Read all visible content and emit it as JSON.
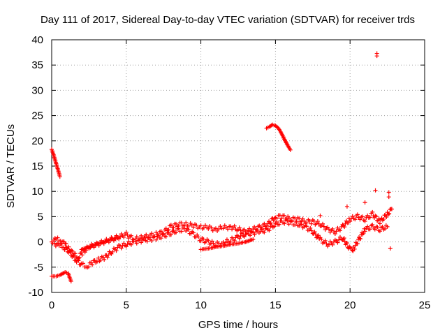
{
  "chart_data": {
    "type": "scatter",
    "title": "Day 111 of 2017, Sidereal Day-to-day VTEC variation (SDTVAR) for receiver trds",
    "xlabel": "GPS time / hours",
    "ylabel": "SDTVAR / TECUs",
    "xlim": [
      0,
      25
    ],
    "ylim": [
      -10,
      40
    ],
    "xticks": [
      0,
      5,
      10,
      15,
      20,
      25
    ],
    "yticks": [
      -10,
      -5,
      0,
      5,
      10,
      15,
      20,
      25,
      30,
      35,
      40
    ],
    "grid": true,
    "marker": "+",
    "color": "#ff0000",
    "series": [
      {
        "name": "early-high-arc",
        "points": [
          [
            0.0,
            18.3
          ],
          [
            0.1,
            17.5
          ],
          [
            0.2,
            16.5
          ],
          [
            0.3,
            15.5
          ],
          [
            0.4,
            14.5
          ],
          [
            0.5,
            13.5
          ],
          [
            0.55,
            12.9
          ]
        ]
      },
      {
        "name": "noon-high-arc",
        "points": [
          [
            14.4,
            22.5
          ],
          [
            14.6,
            22.8
          ],
          [
            14.8,
            23.2
          ],
          [
            15.0,
            23.0
          ],
          [
            15.2,
            22.5
          ],
          [
            15.4,
            21.5
          ],
          [
            15.6,
            20.3
          ],
          [
            15.8,
            19.2
          ],
          [
            16.0,
            18.2
          ]
        ]
      },
      {
        "name": "low-start-arc",
        "points": [
          [
            0.0,
            -6.8
          ],
          [
            0.3,
            -6.8
          ],
          [
            0.6,
            -6.5
          ],
          [
            0.9,
            -6.0
          ],
          [
            1.1,
            -6.2
          ],
          [
            1.2,
            -7.0
          ],
          [
            1.3,
            -7.8
          ]
        ]
      },
      {
        "name": "main-band-upper",
        "points": [
          [
            0.0,
            0.0
          ],
          [
            0.3,
            0.5
          ],
          [
            0.6,
            0.3
          ],
          [
            0.9,
            -0.5
          ],
          [
            1.2,
            -1.5
          ],
          [
            1.5,
            -2.5
          ],
          [
            1.8,
            -3.0
          ],
          [
            2.1,
            -2.0
          ],
          [
            2.5,
            -1.0
          ],
          [
            3.0,
            -0.5
          ],
          [
            3.5,
            0.0
          ],
          [
            4.0,
            0.5
          ],
          [
            4.5,
            1.0
          ],
          [
            5.0,
            1.5
          ],
          [
            5.5,
            0.5
          ],
          [
            6.0,
            0.8
          ],
          [
            6.5,
            1.2
          ],
          [
            7.0,
            1.5
          ],
          [
            7.5,
            2.0
          ],
          [
            8.0,
            3.0
          ],
          [
            8.5,
            3.5
          ],
          [
            9.0,
            3.5
          ],
          [
            9.5,
            3.2
          ],
          [
            10.0,
            3.0
          ],
          [
            10.5,
            2.8
          ],
          [
            11.0,
            2.5
          ],
          [
            11.5,
            2.8
          ],
          [
            12.0,
            3.0
          ],
          [
            12.5,
            2.5
          ],
          [
            13.0,
            2.0
          ],
          [
            13.5,
            2.5
          ],
          [
            14.0,
            3.0
          ],
          [
            14.5,
            3.5
          ],
          [
            15.0,
            5.0
          ],
          [
            15.5,
            5.0
          ],
          [
            16.0,
            4.5
          ],
          [
            16.5,
            4.5
          ],
          [
            17.0,
            4.0
          ],
          [
            17.5,
            4.0
          ],
          [
            18.0,
            3.5
          ],
          [
            18.5,
            2.5
          ],
          [
            19.0,
            2.0
          ],
          [
            19.5,
            3.0
          ],
          [
            20.0,
            4.5
          ],
          [
            20.5,
            5.0
          ],
          [
            21.0,
            4.5
          ],
          [
            21.5,
            5.5
          ],
          [
            22.0,
            4.0
          ],
          [
            22.5,
            5.5
          ],
          [
            22.8,
            6.5
          ]
        ]
      },
      {
        "name": "main-band-lower",
        "points": [
          [
            0.2,
            -0.3
          ],
          [
            0.5,
            -0.8
          ],
          [
            0.8,
            -1.0
          ],
          [
            1.2,
            -2.0
          ],
          [
            1.6,
            -3.5
          ],
          [
            2.0,
            -4.5
          ],
          [
            2.4,
            -4.8
          ],
          [
            2.8,
            -4.0
          ],
          [
            3.2,
            -3.5
          ],
          [
            3.6,
            -3.0
          ],
          [
            4.0,
            -2.0
          ],
          [
            4.5,
            -1.0
          ],
          [
            5.0,
            -0.5
          ],
          [
            5.5,
            0.0
          ],
          [
            6.0,
            0.3
          ],
          [
            6.5,
            0.5
          ],
          [
            7.0,
            0.8
          ],
          [
            7.5,
            1.2
          ],
          [
            8.0,
            1.8
          ],
          [
            8.5,
            2.3
          ],
          [
            9.0,
            2.5
          ],
          [
            9.5,
            1.5
          ],
          [
            10.0,
            0.5
          ],
          [
            10.5,
            0.0
          ],
          [
            11.0,
            -0.5
          ],
          [
            11.5,
            -0.2
          ],
          [
            12.0,
            0.3
          ],
          [
            12.5,
            1.0
          ],
          [
            13.0,
            1.5
          ],
          [
            13.5,
            1.8
          ],
          [
            14.0,
            2.0
          ],
          [
            14.5,
            2.5
          ],
          [
            15.0,
            3.5
          ],
          [
            15.5,
            4.0
          ],
          [
            16.0,
            3.8
          ],
          [
            16.5,
            3.5
          ],
          [
            17.0,
            3.0
          ],
          [
            17.5,
            2.0
          ],
          [
            18.0,
            0.5
          ],
          [
            18.5,
            -0.5
          ],
          [
            19.0,
            0.0
          ],
          [
            19.5,
            0.8
          ],
          [
            20.0,
            -1.5
          ],
          [
            20.3,
            -1.0
          ],
          [
            20.6,
            0.5
          ],
          [
            21.0,
            2.5
          ],
          [
            21.5,
            3.0
          ],
          [
            22.0,
            2.5
          ],
          [
            22.5,
            3.0
          ]
        ]
      },
      {
        "name": "mid-branch",
        "points": [
          [
            2.0,
            -1.5
          ],
          [
            2.5,
            -1.0
          ],
          [
            3.0,
            -0.5
          ],
          [
            3.5,
            0.0
          ],
          [
            4.0,
            0.5
          ],
          [
            4.5,
            0.8
          ],
          [
            10.0,
            -1.5
          ],
          [
            10.5,
            -1.3
          ],
          [
            11.0,
            -1.0
          ],
          [
            11.5,
            -0.8
          ],
          [
            12.0,
            -0.5
          ],
          [
            12.5,
            -0.3
          ],
          [
            13.0,
            0.0
          ],
          [
            13.5,
            0.5
          ]
        ]
      },
      {
        "name": "late-spikes",
        "points": [
          [
            18.0,
            5.2
          ],
          [
            19.8,
            7.0
          ],
          [
            20.2,
            -1.8
          ],
          [
            21.0,
            7.8
          ],
          [
            21.7,
            10.2
          ],
          [
            21.8,
            37.3
          ],
          [
            21.8,
            36.8
          ],
          [
            22.6,
            9.8
          ],
          [
            22.6,
            8.9
          ],
          [
            22.7,
            -1.3
          ]
        ]
      }
    ]
  }
}
